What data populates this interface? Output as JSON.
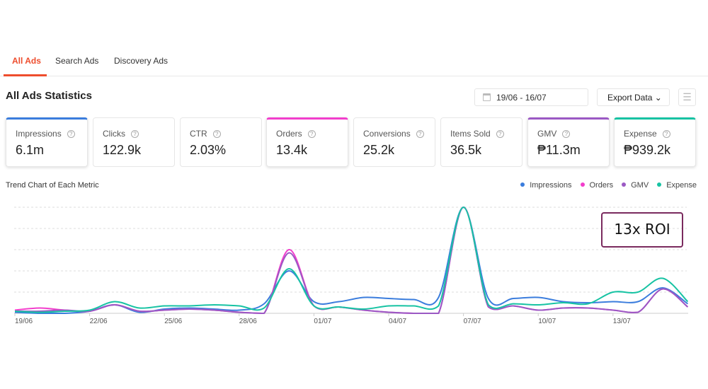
{
  "tabs": [
    {
      "label": "All Ads",
      "active": true
    },
    {
      "label": "Search Ads"
    },
    {
      "label": "Discovery Ads"
    }
  ],
  "title": "All Ads Statistics",
  "date_range": "19/06 - 16/07",
  "export_label": "Export Data ⌄",
  "menu_icon": "hamburger-icon",
  "accent": "#ee4d2d",
  "metrics": [
    {
      "label": "Impressions",
      "value": "6.1m",
      "color": "#3b7ddd",
      "selected": true
    },
    {
      "label": "Clicks",
      "value": "122.9k"
    },
    {
      "label": "CTR",
      "value": "2.03%"
    },
    {
      "label": "Orders",
      "value": "13.4k",
      "color": "#f23ecc",
      "selected": true
    },
    {
      "label": "Conversions",
      "value": "25.2k"
    },
    {
      "label": "Items Sold",
      "value": "36.5k"
    },
    {
      "label": "GMV",
      "value": "₱11.3m",
      "color": "#9b59c4",
      "selected": true
    },
    {
      "label": "Expense",
      "value": "₱939.2k",
      "color": "#17c3a3",
      "selected": true
    }
  ],
  "chart_title": "Trend Chart of Each Metric",
  "annotation": "13x ROI",
  "chart_data": {
    "type": "line",
    "title": "Trend Chart of Each Metric",
    "x_ticks": [
      "19/06",
      "22/06",
      "25/06",
      "28/06",
      "01/07",
      "04/07",
      "07/07",
      "10/07",
      "13/07"
    ],
    "x_range": [
      "19/06",
      "16/07"
    ],
    "y_scale": "relative 0-100, no y-axis labels shown",
    "ylim": [
      0,
      100
    ],
    "grid": "horizontal dashed",
    "legend": "top-right",
    "series": [
      {
        "name": "Impressions",
        "color": "#3b7ddd",
        "values": [
          1,
          0,
          0,
          2,
          8,
          1,
          4,
          5,
          4,
          3,
          9,
          40,
          11,
          11,
          15,
          14,
          13,
          15,
          100,
          14,
          14,
          15,
          11,
          10,
          11,
          11,
          24,
          9
        ]
      },
      {
        "name": "Orders",
        "color": "#f23ecc",
        "values": [
          3,
          5,
          3,
          2,
          8,
          2,
          3,
          4,
          3,
          1,
          0,
          60,
          7,
          6,
          3,
          1,
          0,
          0,
          100,
          6,
          7,
          3,
          5,
          5,
          3,
          1,
          23,
          6
        ]
      },
      {
        "name": "GMV",
        "color": "#9b59c4",
        "values": [
          2,
          2,
          3,
          2,
          8,
          2,
          3,
          4,
          3,
          1,
          0,
          57,
          7,
          6,
          3,
          1,
          0,
          0,
          100,
          6,
          7,
          3,
          5,
          5,
          3,
          1,
          23,
          6
        ]
      },
      {
        "name": "Expense",
        "color": "#17c3a3",
        "values": [
          2,
          1,
          2,
          3,
          11,
          5,
          7,
          7,
          8,
          7,
          5,
          42,
          7,
          6,
          4,
          7,
          7,
          7,
          100,
          8,
          9,
          8,
          10,
          9,
          20,
          20,
          33,
          11
        ]
      }
    ]
  }
}
